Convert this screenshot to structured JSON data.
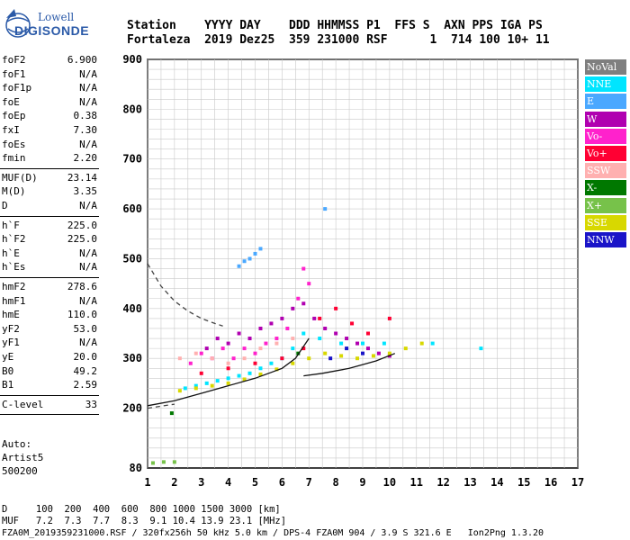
{
  "logo": {
    "line1": "Lowell",
    "line2": "DIGISONDE"
  },
  "header": {
    "row1": "Station    YYYY DAY    DDD HHMMSS P1  FFS S  AXN PPS IGA PS",
    "row2": "Fortaleza  2019 Dez25  359 231000 RSF      1  714 100 10+ 11"
  },
  "params": {
    "group1": [
      {
        "name": "foF2",
        "value": "6.900"
      },
      {
        "name": "foF1",
        "value": "N/A"
      },
      {
        "name": "foF1p",
        "value": "N/A"
      },
      {
        "name": "foE",
        "value": "N/A"
      },
      {
        "name": "foEp",
        "value": "0.38"
      },
      {
        "name": "fxI",
        "value": "7.30"
      },
      {
        "name": "foEs",
        "value": "N/A"
      },
      {
        "name": "fmin",
        "value": "2.20"
      }
    ],
    "group2": [
      {
        "name": "MUF(D)",
        "value": "23.14"
      },
      {
        "name": "M(D)",
        "value": "3.35"
      },
      {
        "name": "D",
        "value": "N/A"
      }
    ],
    "group3": [
      {
        "name": "h`F",
        "value": "225.0"
      },
      {
        "name": "h`F2",
        "value": "225.0"
      },
      {
        "name": "h`E",
        "value": "N/A"
      },
      {
        "name": "h`Es",
        "value": "N/A"
      }
    ],
    "group4": [
      {
        "name": "hmF2",
        "value": "278.6"
      },
      {
        "name": "hmF1",
        "value": "N/A"
      },
      {
        "name": "hmE",
        "value": "110.0"
      },
      {
        "name": "yF2",
        "value": "53.0"
      },
      {
        "name": "yF1",
        "value": "N/A"
      },
      {
        "name": "yE",
        "value": "20.0"
      },
      {
        "name": "B0",
        "value": "49.2"
      },
      {
        "name": "B1",
        "value": "2.59"
      }
    ],
    "clevel": {
      "name": "C-level",
      "value": "33"
    }
  },
  "auto": {
    "line1": "Auto:",
    "line2": "Artist5",
    "line3": "500200"
  },
  "legend": [
    {
      "label": "NoVal",
      "color": "#7f7f7f"
    },
    {
      "label": "NNE",
      "color": "#00e5ff"
    },
    {
      "label": "E",
      "color": "#4aa8ff"
    },
    {
      "label": "W",
      "color": "#b000b0"
    },
    {
      "label": "Vo-",
      "color": "#ff22cc"
    },
    {
      "label": "Vo+",
      "color": "#ff0033"
    },
    {
      "label": "SSW",
      "color": "#ffb0b0"
    },
    {
      "label": "X-",
      "color": "#007800"
    },
    {
      "label": "X+",
      "color": "#77c24a"
    },
    {
      "label": "SSE",
      "color": "#d8d800"
    },
    {
      "label": "NNW",
      "color": "#1a14c8"
    }
  ],
  "footer": {
    "row1": "D     100  200  400  600  800 1000 1500 3000 [km]",
    "row2": "MUF   7.2  7.3  7.7  8.3  9.1 10.4 13.9 23.1 [MHz]",
    "row3": "FZA0M_2019359231000.RSF / 320fx256h 50 kHz 5.0 km / DPS-4 FZA0M 904 / 3.9 S 321.6 E   Ion2Png 1.3.20"
  },
  "chart_data": {
    "type": "scatter",
    "title": "",
    "xlabel": "",
    "ylabel": "",
    "xlim": [
      1,
      17
    ],
    "ylim": [
      80,
      900
    ],
    "x_ticks": [
      1,
      2,
      3,
      4,
      5,
      6,
      7,
      8,
      9,
      10,
      11,
      12,
      13,
      14,
      15,
      16,
      17
    ],
    "y_ticks": [
      80,
      200,
      300,
      400,
      500,
      600,
      700,
      800,
      900
    ],
    "grid": true,
    "legend_position": "right",
    "series": [
      {
        "name": "W",
        "color": "#b000b0",
        "points": [
          [
            3.2,
            320
          ],
          [
            3.6,
            340
          ],
          [
            4.0,
            330
          ],
          [
            4.4,
            350
          ],
          [
            4.8,
            340
          ],
          [
            5.2,
            360
          ],
          [
            5.6,
            370
          ],
          [
            6.0,
            380
          ],
          [
            6.4,
            400
          ],
          [
            6.8,
            410
          ],
          [
            7.2,
            380
          ],
          [
            7.6,
            360
          ],
          [
            8.0,
            350
          ],
          [
            8.4,
            340
          ],
          [
            8.8,
            330
          ],
          [
            9.2,
            320
          ],
          [
            9.6,
            310
          ],
          [
            10.0,
            305
          ]
        ]
      },
      {
        "name": "Vo-",
        "color": "#ff22cc",
        "points": [
          [
            2.6,
            290
          ],
          [
            3.0,
            310
          ],
          [
            3.4,
            300
          ],
          [
            3.8,
            320
          ],
          [
            4.2,
            300
          ],
          [
            4.6,
            320
          ],
          [
            5.0,
            310
          ],
          [
            5.4,
            330
          ],
          [
            5.8,
            340
          ],
          [
            6.2,
            360
          ],
          [
            6.6,
            420
          ],
          [
            6.8,
            480
          ],
          [
            7.0,
            450
          ]
        ]
      },
      {
        "name": "NNE",
        "color": "#00e5ff",
        "points": [
          [
            2.4,
            240
          ],
          [
            2.8,
            245
          ],
          [
            3.2,
            250
          ],
          [
            3.6,
            255
          ],
          [
            4.0,
            260
          ],
          [
            4.4,
            265
          ],
          [
            4.8,
            270
          ],
          [
            5.2,
            280
          ],
          [
            5.6,
            290
          ],
          [
            6.0,
            300
          ],
          [
            6.4,
            320
          ],
          [
            6.8,
            350
          ],
          [
            7.4,
            340
          ],
          [
            8.2,
            330
          ],
          [
            9.0,
            330
          ],
          [
            9.8,
            330
          ],
          [
            11.6,
            330
          ],
          [
            13.4,
            320
          ]
        ]
      },
      {
        "name": "E",
        "color": "#4aa8ff",
        "points": [
          [
            4.4,
            485
          ],
          [
            4.6,
            495
          ],
          [
            4.8,
            500
          ],
          [
            5.0,
            510
          ],
          [
            5.2,
            520
          ],
          [
            7.6,
            600
          ]
        ]
      },
      {
        "name": "SSE",
        "color": "#d8d800",
        "points": [
          [
            2.2,
            235
          ],
          [
            2.8,
            240
          ],
          [
            3.4,
            245
          ],
          [
            4.0,
            250
          ],
          [
            4.6,
            258
          ],
          [
            5.2,
            268
          ],
          [
            5.8,
            278
          ],
          [
            6.4,
            290
          ],
          [
            7.0,
            300
          ],
          [
            7.6,
            310
          ],
          [
            8.2,
            305
          ],
          [
            8.8,
            300
          ],
          [
            9.4,
            305
          ],
          [
            10.0,
            310
          ],
          [
            10.6,
            320
          ],
          [
            11.2,
            330
          ]
        ]
      },
      {
        "name": "SSW",
        "color": "#ffb0b0",
        "points": [
          [
            2.2,
            300
          ],
          [
            2.8,
            310
          ],
          [
            3.4,
            300
          ],
          [
            4.0,
            290
          ],
          [
            4.6,
            300
          ],
          [
            5.2,
            320
          ],
          [
            5.8,
            330
          ],
          [
            6.4,
            340
          ]
        ]
      },
      {
        "name": "Vo+",
        "color": "#ff0033",
        "points": [
          [
            3.0,
            270
          ],
          [
            4.0,
            280
          ],
          [
            5.0,
            290
          ],
          [
            6.0,
            300
          ],
          [
            6.8,
            320
          ],
          [
            7.4,
            380
          ],
          [
            8.0,
            400
          ],
          [
            8.6,
            370
          ],
          [
            9.2,
            350
          ],
          [
            10.0,
            380
          ]
        ]
      },
      {
        "name": "X+",
        "color": "#77c24a",
        "points": [
          [
            1.2,
            90
          ],
          [
            1.6,
            92
          ],
          [
            2.0,
            92
          ]
        ]
      },
      {
        "name": "X-",
        "color": "#007800",
        "points": [
          [
            1.9,
            190
          ],
          [
            6.6,
            310
          ]
        ]
      },
      {
        "name": "NNW",
        "color": "#1a14c8",
        "points": [
          [
            7.8,
            300
          ],
          [
            8.4,
            320
          ],
          [
            9.0,
            310
          ]
        ]
      }
    ],
    "curves": [
      {
        "name": "trace",
        "points": [
          [
            1.0,
            205
          ],
          [
            2.0,
            215
          ],
          [
            3.0,
            230
          ],
          [
            4.0,
            245
          ],
          [
            5.0,
            260
          ],
          [
            6.0,
            280
          ],
          [
            6.5,
            300
          ],
          [
            7.0,
            340
          ]
        ],
        "style": "solid"
      },
      {
        "name": "bottomline",
        "points": [
          [
            6.8,
            265
          ],
          [
            7.5,
            270
          ],
          [
            8.5,
            280
          ],
          [
            9.5,
            295
          ],
          [
            10.2,
            310
          ]
        ],
        "style": "solid"
      },
      {
        "name": "upper-dashed",
        "points": [
          [
            1.0,
            490
          ],
          [
            1.5,
            445
          ],
          [
            2.0,
            415
          ],
          [
            2.5,
            395
          ],
          [
            3.0,
            380
          ],
          [
            3.5,
            370
          ],
          [
            3.8,
            365
          ]
        ],
        "style": "dashed"
      },
      {
        "name": "lower-dashed",
        "points": [
          [
            1.0,
            200
          ],
          [
            1.5,
            204
          ],
          [
            2.0,
            208
          ]
        ],
        "style": "dashed"
      }
    ]
  }
}
